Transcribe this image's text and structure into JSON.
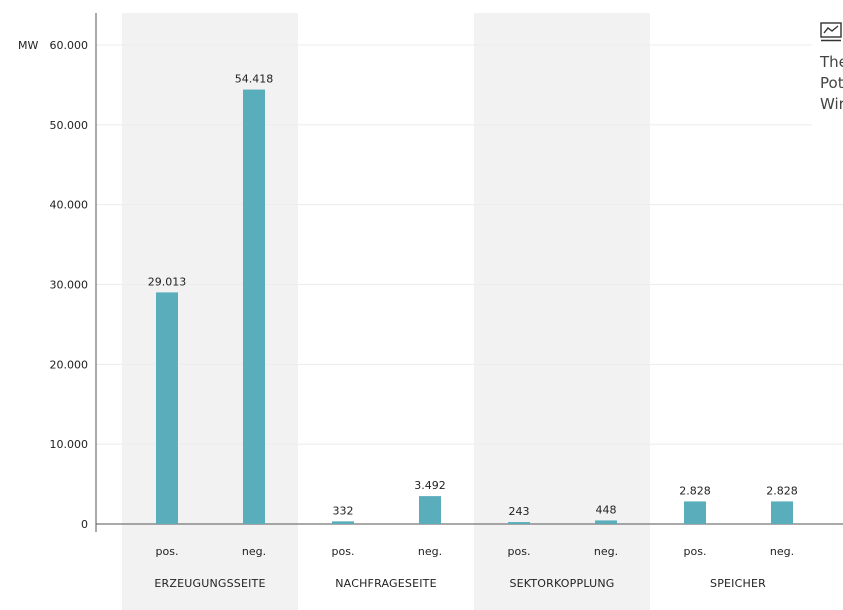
{
  "chart_data": {
    "type": "bar",
    "y_unit": "MW",
    "ylim": [
      0,
      60000
    ],
    "yticks": [
      0,
      10000,
      20000,
      30000,
      40000,
      50000,
      60000
    ],
    "ytick_labels": [
      "0",
      "10.000",
      "20.000",
      "30.000",
      "40.000",
      "50.000",
      "60.000"
    ],
    "grid": true,
    "groups": [
      {
        "label": "ERZEUGUNGSSEITE",
        "bars": [
          {
            "category": "pos.",
            "value": 29013,
            "value_label": "29.013"
          },
          {
            "category": "neg.",
            "value": 54418,
            "value_label": "54.418"
          }
        ]
      },
      {
        "label": "NACHFRAGESEITE",
        "bars": [
          {
            "category": "pos.",
            "value": 332,
            "value_label": "332"
          },
          {
            "category": "neg.",
            "value": 3492,
            "value_label": "3.492"
          }
        ]
      },
      {
        "label": "SEKTORKOPPLUNG",
        "bars": [
          {
            "category": "pos.",
            "value": 243,
            "value_label": "243"
          },
          {
            "category": "neg.",
            "value": 448,
            "value_label": "448"
          }
        ]
      },
      {
        "label": "SPEICHER",
        "bars": [
          {
            "category": "pos.",
            "value": 2828,
            "value_label": "2.828"
          },
          {
            "category": "neg.",
            "value": 2828,
            "value_label": "2.828"
          }
        ]
      }
    ],
    "colors": {
      "bar": "#5aadba",
      "band": "#f2f2f2",
      "grid": "#ececec",
      "axis": "#555555"
    }
  },
  "side_panel": {
    "icon": "line-chart-icon",
    "lines": [
      "The",
      "Pot",
      "Wir"
    ]
  }
}
